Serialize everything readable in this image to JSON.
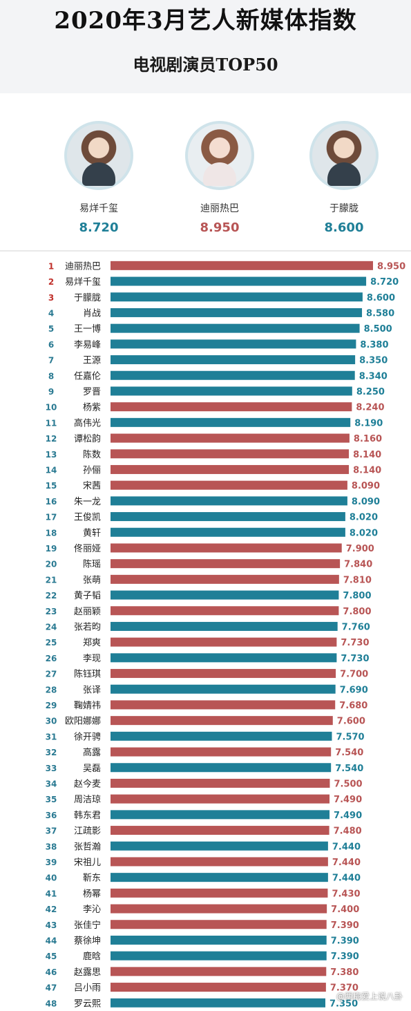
{
  "header": {
    "title": "2020年3月艺人新媒体指数",
    "subtitle": "电视剧演员TOP50"
  },
  "top3": [
    {
      "name": "易烊千玺",
      "score": "8.720",
      "color": "#1f7f97"
    },
    {
      "name": "迪丽热巴",
      "score": "8.950",
      "color": "#b85555"
    },
    {
      "name": "于朦胧",
      "score": "8.600",
      "color": "#1f7f97"
    }
  ],
  "watermark": "@西梅爱上说八卦",
  "colors": {
    "red": "#b85555",
    "teal": "#1f7f97",
    "rank_highlight": "#c0302b",
    "rank_normal": "#2a7a92"
  },
  "chart_data": {
    "type": "bar",
    "orientation": "horizontal",
    "categories": [
      "迪丽热巴",
      "易烊千玺",
      "于朦胧",
      "肖战",
      "王一博",
      "李易峰",
      "王源",
      "任嘉伦",
      "罗晋",
      "杨紫",
      "高伟光",
      "谭松韵",
      "陈数",
      "孙俪",
      "宋茜",
      "朱一龙",
      "王俊凯",
      "黄轩",
      "佟丽娅",
      "陈瑶",
      "张萌",
      "黄子韬",
      "赵丽颖",
      "张若昀",
      "郑爽",
      "李现",
      "陈钰琪",
      "张译",
      "鞠婧祎",
      "欧阳娜娜",
      "徐开骋",
      "高露",
      "吴磊",
      "赵今麦",
      "周洁琼",
      "韩东君",
      "江疏影",
      "张哲瀚",
      "宋祖儿",
      "靳东",
      "杨幂",
      "李沁",
      "张佳宁",
      "蔡徐坤",
      "鹿晗",
      "赵露思",
      "吕小雨",
      "罗云熙"
    ],
    "ranks": [
      "1",
      "2",
      "3",
      "4",
      "5",
      "6",
      "7",
      "8",
      "9",
      "10",
      "11",
      "12",
      "13",
      "14",
      "15",
      "16",
      "17",
      "18",
      "19",
      "20",
      "21",
      "22",
      "23",
      "24",
      "25",
      "26",
      "27",
      "28",
      "29",
      "30",
      "31",
      "32",
      "33",
      "34",
      "35",
      "36",
      "37",
      "38",
      "39",
      "40",
      "41",
      "42",
      "43",
      "44",
      "45",
      "46",
      "47",
      "48"
    ],
    "values": [
      8.95,
      8.72,
      8.6,
      8.58,
      8.5,
      8.38,
      8.35,
      8.34,
      8.25,
      8.24,
      8.19,
      8.16,
      8.14,
      8.14,
      8.09,
      8.09,
      8.02,
      8.02,
      7.9,
      7.84,
      7.81,
      7.8,
      7.8,
      7.76,
      7.73,
      7.73,
      7.7,
      7.69,
      7.68,
      7.6,
      7.57,
      7.54,
      7.54,
      7.5,
      7.49,
      7.49,
      7.48,
      7.44,
      7.44,
      7.44,
      7.43,
      7.4,
      7.39,
      7.39,
      7.39,
      7.38,
      7.37,
      7.35
    ],
    "labels": [
      "8.950",
      "8.720",
      "8.600",
      "8.580",
      "8.500",
      "8.380",
      "8.350",
      "8.340",
      "8.250",
      "8.240",
      "8.190",
      "8.160",
      "8.140",
      "8.140",
      "8.090",
      "8.090",
      "8.020",
      "8.020",
      "7.900",
      "7.840",
      "7.810",
      "7.800",
      "7.800",
      "7.760",
      "7.730",
      "7.730",
      "7.700",
      "7.690",
      "7.680",
      "7.600",
      "7.570",
      "7.540",
      "7.540",
      "7.500",
      "7.490",
      "7.490",
      "7.480",
      "7.440",
      "7.440",
      "7.440",
      "7.430",
      "7.400",
      "7.390",
      "7.390",
      "7.390",
      "7.380",
      "7.370",
      "7.350"
    ],
    "bar_colors": [
      "red",
      "teal",
      "teal",
      "teal",
      "teal",
      "teal",
      "teal",
      "teal",
      "teal",
      "red",
      "teal",
      "red",
      "red",
      "red",
      "red",
      "teal",
      "teal",
      "teal",
      "red",
      "red",
      "red",
      "teal",
      "red",
      "teal",
      "red",
      "teal",
      "red",
      "teal",
      "red",
      "red",
      "teal",
      "red",
      "teal",
      "red",
      "red",
      "teal",
      "red",
      "teal",
      "red",
      "teal",
      "red",
      "red",
      "red",
      "teal",
      "teal",
      "red",
      "red",
      "teal"
    ],
    "xlim": [
      0,
      8.95
    ]
  }
}
